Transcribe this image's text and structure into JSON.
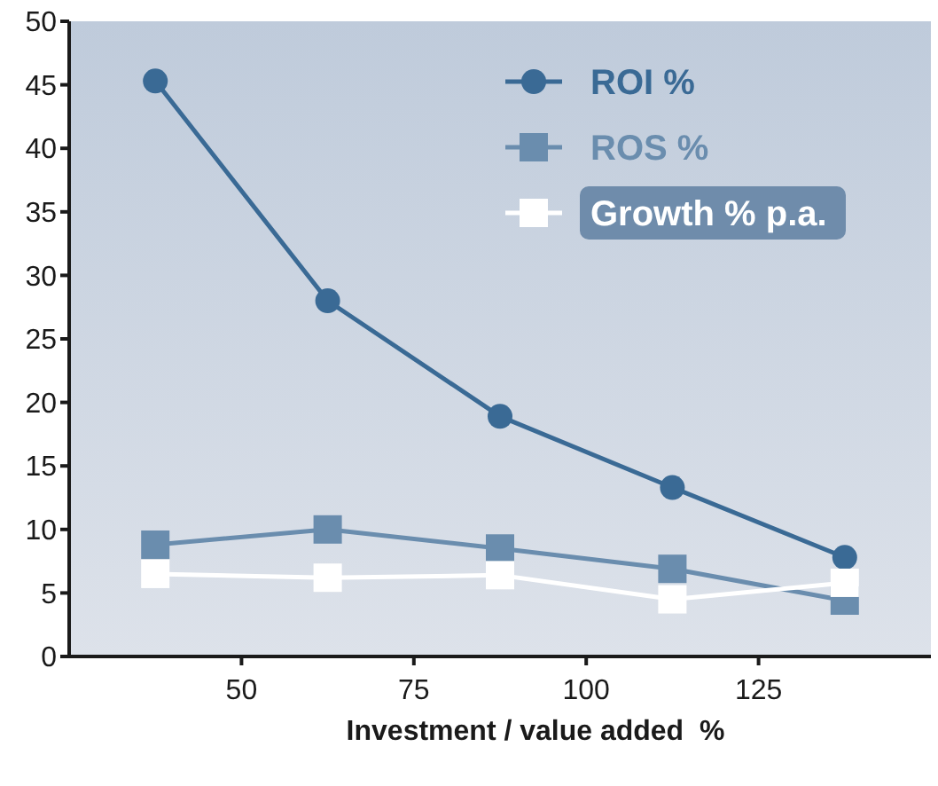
{
  "chart_data": {
    "type": "line",
    "xlabel": "Investment / value added  %",
    "x": [
      37.5,
      62.5,
      87.5,
      112.5,
      137.5
    ],
    "xlim": [
      25,
      150
    ],
    "xticks": [
      50,
      75,
      100,
      125
    ],
    "ylim": [
      0,
      50
    ],
    "yticks": [
      0,
      5,
      10,
      15,
      20,
      25,
      30,
      35,
      40,
      45,
      50
    ],
    "legend": "top right",
    "grid": false,
    "series": [
      {
        "name": "ROI %",
        "color": "#3a6a95",
        "marker": "circle",
        "values": [
          45.3,
          28,
          18.9,
          13.3,
          7.8
        ]
      },
      {
        "name": "ROS %",
        "color": "#6a8dae",
        "marker": "square",
        "values": [
          8.8,
          10,
          8.5,
          6.9,
          4.4
        ]
      },
      {
        "name": "Growth % p.a.",
        "color": "#ffffff",
        "marker": "square",
        "values": [
          6.5,
          6.2,
          6.4,
          4.5,
          5.8
        ]
      }
    ]
  }
}
